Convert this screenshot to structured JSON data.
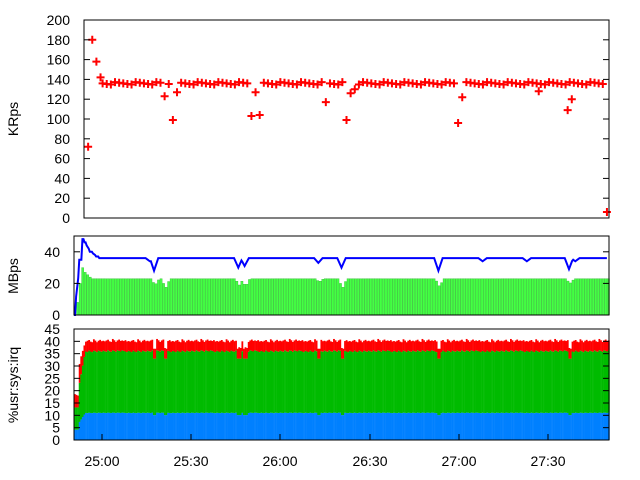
{
  "chart_data": [
    {
      "type": "scatter",
      "ylabel": "KRps",
      "ylim": [
        0,
        200
      ],
      "yticks": [
        0,
        20,
        40,
        60,
        80,
        100,
        120,
        140,
        160,
        180,
        200
      ],
      "xlim": [
        1492,
        1746
      ],
      "grid": false,
      "color": "#ff0000",
      "series": [
        {
          "baseline": 136,
          "points": [
            [
              1494,
              72
            ],
            [
              1496,
              180
            ],
            [
              1498,
              158
            ],
            [
              1500,
              142
            ],
            [
              1531,
              123
            ],
            [
              1535,
              99
            ],
            [
              1537,
              127
            ],
            [
              1573,
              103
            ],
            [
              1575,
              127
            ],
            [
              1577,
              104
            ],
            [
              1609,
              117
            ],
            [
              1619,
              99
            ],
            [
              1621,
              126
            ],
            [
              1623,
              130
            ],
            [
              1673,
              96
            ],
            [
              1675,
              122
            ],
            [
              1712,
              128
            ],
            [
              1726,
              109
            ],
            [
              1728,
              120
            ],
            [
              1745,
              6
            ]
          ]
        }
      ]
    },
    {
      "type": "line",
      "ylabel": "MBps",
      "ylim": [
        0,
        50
      ],
      "yticks": [
        0,
        20,
        40
      ],
      "grid": false,
      "series": [
        {
          "style": "line",
          "color": "#0000ff",
          "baseline": 36,
          "start": [
            [
              1492,
              0
            ],
            [
              1495,
              35
            ],
            [
              1496,
              48
            ],
            [
              1497,
              46
            ],
            [
              1500,
              40
            ],
            [
              1503,
              37
            ]
          ],
          "dips": [
            [
              1530,
              28
            ],
            [
              1528,
              34
            ],
            [
              1570,
              30
            ],
            [
              1573,
              31
            ],
            [
              1608,
              33
            ],
            [
              1619,
              30
            ],
            [
              1665,
              28
            ],
            [
              1686,
              34
            ],
            [
              1707,
              34
            ],
            [
              1727,
              29
            ],
            [
              1730,
              34
            ]
          ]
        },
        {
          "style": "bars",
          "color": "#44ff44",
          "baseline": 23,
          "start": [
            [
              1492,
              0
            ],
            [
              1495,
              20
            ],
            [
              1496,
              30
            ],
            [
              1497,
              27
            ],
            [
              1499,
              24
            ]
          ],
          "dips": [
            [
              1530,
              19
            ],
            [
              1535,
              17
            ],
            [
              1570,
              19
            ],
            [
              1573,
              18
            ],
            [
              1608,
              21
            ],
            [
              1619,
              17
            ],
            [
              1665,
              18
            ],
            [
              1727,
              20
            ]
          ]
        }
      ]
    },
    {
      "type": "area",
      "ylabel": "%usr:sys:irq",
      "ylim": [
        0,
        45
      ],
      "yticks": [
        0,
        5,
        10,
        15,
        20,
        25,
        30,
        35,
        40,
        45
      ],
      "xticks": [
        "25:00",
        "25:30",
        "26:00",
        "26:30",
        "27:00",
        "27:30"
      ],
      "xtick_values": [
        1500,
        1530,
        1560,
        1590,
        1620,
        1650
      ],
      "grid": false,
      "series": [
        {
          "name": "usr",
          "color": "#0080ff",
          "baseline": 11,
          "start": 7
        },
        {
          "name": "sys",
          "color": "#00bb00",
          "baseline": 36,
          "start": 22
        },
        {
          "name": "irq",
          "color": "#ff0000",
          "baseline": 40,
          "start": 30
        }
      ],
      "dips": [
        1530,
        1535,
        1570,
        1573,
        1608,
        1619,
        1665,
        1727
      ]
    }
  ]
}
